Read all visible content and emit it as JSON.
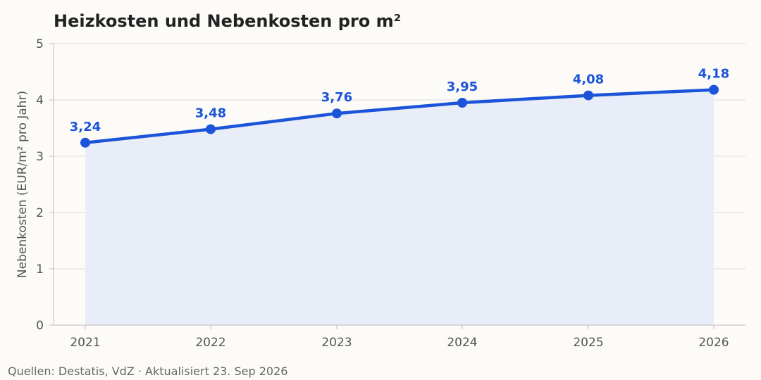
{
  "title": "Heizkosten und Nebenkosten pro m²",
  "source": "Quellen: Destatis, VdZ · Aktualisiert 23. Sep 2026",
  "colors": {
    "line": "#1c54d9",
    "area": "#e9edf7",
    "grid": "#e0dedb",
    "axis": "#bbbbbb",
    "text": "#555555",
    "background": "#fcfbf8"
  },
  "chart_data": {
    "type": "line",
    "x": [
      "2021",
      "2022",
      "2023",
      "2024",
      "2025",
      "2026"
    ],
    "series": [
      {
        "values": [
          3.24,
          3.48,
          3.76,
          3.95,
          4.08,
          4.18
        ],
        "labels": [
          "3,24",
          "3,48",
          "3,76",
          "3,95",
          "4,08",
          "4,18"
        ]
      }
    ],
    "title": "Heizkosten und Nebenkosten pro m²",
    "xlabel": "",
    "ylabel": "Nebenkosten (EUR/m² pro Jahr)",
    "ylim": [
      0,
      5
    ],
    "yticks": [
      "0",
      "1",
      "2",
      "3",
      "4",
      "5"
    ],
    "grid": true,
    "area_fill": true,
    "markers": true,
    "legend": "none"
  }
}
